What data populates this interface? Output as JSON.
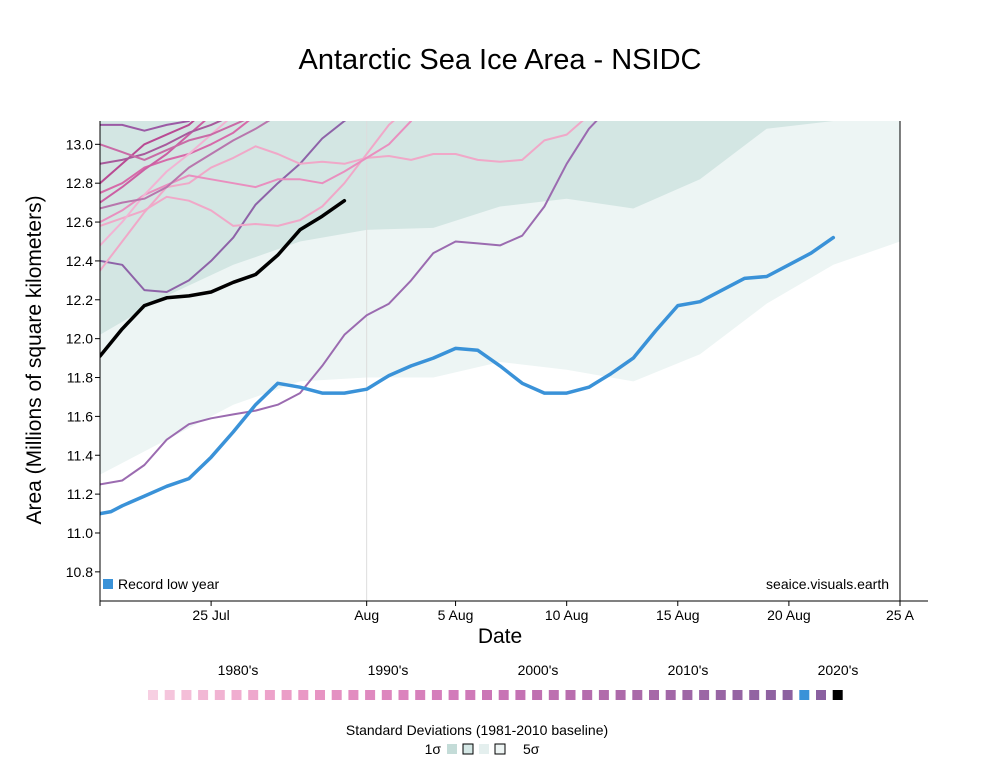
{
  "chart_data": {
    "type": "line",
    "title": "Antarctic Sea Ice Area - NSIDC",
    "xlabel": "Date",
    "ylabel": "Area (Millions of square kilometers)",
    "xlim": [
      "2000-07-20",
      "2000-08-25"
    ],
    "ylim": [
      10.65,
      13.12
    ],
    "grid": false,
    "x_ticks": [
      {
        "date": "2000-07-20",
        "label": ""
      },
      {
        "date": "2000-07-25",
        "label": "25 Jul"
      },
      {
        "date": "2000-08-01",
        "label": "Aug"
      },
      {
        "date": "2000-08-05",
        "label": "5 Aug"
      },
      {
        "date": "2000-08-10",
        "label": "10 Aug"
      },
      {
        "date": "2000-08-15",
        "label": "15 Aug"
      },
      {
        "date": "2000-08-20",
        "label": "20 Aug"
      },
      {
        "date": "2000-08-25",
        "label": "25 A"
      }
    ],
    "y_ticks": [
      "10.8",
      "11.0",
      "11.2",
      "11.4",
      "11.6",
      "11.8",
      "12.0",
      "12.2",
      "12.4",
      "12.6",
      "12.8",
      "13.0"
    ],
    "vertical_line_date": "2000-08-01",
    "std_bands": {
      "dates": [
        "2000-07-20",
        "2000-07-23",
        "2000-07-26",
        "2000-07-29",
        "2000-08-01",
        "2000-08-04",
        "2000-08-07",
        "2000-08-10",
        "2000-08-13",
        "2000-08-16",
        "2000-08-19",
        "2000-08-22",
        "2000-08-25"
      ],
      "five_sigma_lower": [
        11.3,
        11.48,
        11.66,
        11.78,
        11.8,
        11.8,
        11.88,
        11.84,
        11.78,
        11.92,
        12.18,
        12.38,
        12.5
      ],
      "five_sigma_upper": [
        13.12,
        13.12,
        13.12,
        13.12,
        13.12,
        13.12,
        13.12,
        13.12,
        13.12,
        13.12,
        13.12,
        13.12,
        13.12
      ],
      "one_sigma_lower": [
        12.02,
        12.22,
        12.38,
        12.5,
        12.56,
        12.57,
        12.68,
        12.72,
        12.67,
        12.82,
        13.08,
        13.12,
        13.12
      ],
      "one_sigma_upper": [
        13.12,
        13.12,
        13.12,
        13.12,
        13.12,
        13.12,
        13.12,
        13.12,
        13.12,
        13.12,
        13.12,
        13.12,
        13.12
      ]
    },
    "series": [
      {
        "color": "#9b6bb0",
        "width": 2,
        "points": [
          [
            "2000-07-20",
            11.25
          ],
          [
            "2000-07-21",
            11.27
          ],
          [
            "2000-07-22",
            11.35
          ],
          [
            "2000-07-23",
            11.48
          ],
          [
            "2000-07-24",
            11.56
          ],
          [
            "2000-07-25",
            11.59
          ],
          [
            "2000-07-26",
            11.61
          ],
          [
            "2000-07-27",
            11.63
          ],
          [
            "2000-07-28",
            11.66
          ],
          [
            "2000-07-29",
            11.72
          ],
          [
            "2000-07-30",
            11.86
          ],
          [
            "2000-07-31",
            12.02
          ],
          [
            "2000-08-01",
            12.12
          ],
          [
            "2000-08-02",
            12.18
          ],
          [
            "2000-08-03",
            12.3
          ],
          [
            "2000-08-04",
            12.44
          ],
          [
            "2000-08-05",
            12.5
          ],
          [
            "2000-08-06",
            12.49
          ],
          [
            "2000-08-07",
            12.48
          ],
          [
            "2000-08-08",
            12.53
          ],
          [
            "2000-08-09",
            12.68
          ],
          [
            "2000-08-10",
            12.9
          ],
          [
            "2000-08-11",
            13.08
          ],
          [
            "2000-08-12",
            13.2
          ]
        ]
      },
      {
        "color": "#8e63a8",
        "width": 2,
        "points": [
          [
            "2000-07-20",
            12.4
          ],
          [
            "2000-07-21",
            12.38
          ],
          [
            "2000-07-22",
            12.25
          ],
          [
            "2000-07-23",
            12.24
          ],
          [
            "2000-07-24",
            12.3
          ],
          [
            "2000-07-25",
            12.4
          ],
          [
            "2000-07-26",
            12.52
          ],
          [
            "2000-07-27",
            12.69
          ],
          [
            "2000-07-28",
            12.8
          ],
          [
            "2000-07-29",
            12.9
          ],
          [
            "2000-07-30",
            13.03
          ],
          [
            "2000-07-31",
            13.12
          ],
          [
            "2000-08-01",
            13.2
          ]
        ]
      },
      {
        "color": "#f0a8c8",
        "width": 2,
        "points": [
          [
            "2000-07-20",
            12.58
          ],
          [
            "2000-07-21",
            12.62
          ],
          [
            "2000-07-22",
            12.66
          ],
          [
            "2000-07-23",
            12.73
          ],
          [
            "2000-07-24",
            12.71
          ],
          [
            "2000-07-25",
            12.66
          ],
          [
            "2000-07-26",
            12.58
          ],
          [
            "2000-07-27",
            12.59
          ],
          [
            "2000-07-28",
            12.58
          ],
          [
            "2000-07-29",
            12.61
          ],
          [
            "2000-07-30",
            12.68
          ],
          [
            "2000-07-31",
            12.8
          ],
          [
            "2000-08-01",
            12.95
          ],
          [
            "2000-08-02",
            13.1
          ],
          [
            "2000-08-03",
            13.2
          ]
        ]
      },
      {
        "color": "#f0a8c8",
        "width": 2,
        "points": [
          [
            "2000-07-20",
            12.35
          ],
          [
            "2000-07-21",
            12.5
          ],
          [
            "2000-07-22",
            12.65
          ],
          [
            "2000-07-23",
            12.78
          ],
          [
            "2000-07-24",
            12.8
          ],
          [
            "2000-07-25",
            12.88
          ],
          [
            "2000-07-26",
            12.93
          ],
          [
            "2000-07-27",
            12.99
          ],
          [
            "2000-07-28",
            12.95
          ],
          [
            "2000-07-29",
            12.9
          ],
          [
            "2000-07-30",
            12.91
          ],
          [
            "2000-07-31",
            12.9
          ],
          [
            "2000-08-01",
            12.93
          ],
          [
            "2000-08-02",
            12.94
          ],
          [
            "2000-08-03",
            12.92
          ],
          [
            "2000-08-04",
            12.95
          ],
          [
            "2000-08-05",
            12.95
          ],
          [
            "2000-08-06",
            12.92
          ],
          [
            "2000-08-07",
            12.91
          ],
          [
            "2000-08-08",
            12.92
          ],
          [
            "2000-08-09",
            13.02
          ],
          [
            "2000-08-10",
            13.05
          ],
          [
            "2000-08-11",
            13.15
          ]
        ]
      },
      {
        "color": "#e98fbf",
        "width": 2,
        "points": [
          [
            "2000-07-20",
            12.6
          ],
          [
            "2000-07-21",
            12.66
          ],
          [
            "2000-07-22",
            12.74
          ],
          [
            "2000-07-23",
            12.79
          ],
          [
            "2000-07-24",
            12.84
          ],
          [
            "2000-07-25",
            12.82
          ],
          [
            "2000-07-26",
            12.8
          ],
          [
            "2000-07-27",
            12.78
          ],
          [
            "2000-07-28",
            12.82
          ],
          [
            "2000-07-29",
            12.82
          ],
          [
            "2000-07-30",
            12.8
          ],
          [
            "2000-07-31",
            12.86
          ],
          [
            "2000-08-01",
            12.93
          ],
          [
            "2000-08-02",
            13.0
          ],
          [
            "2000-08-03",
            13.12
          ]
        ]
      },
      {
        "color": "#d66aa9",
        "width": 2,
        "points": [
          [
            "2000-07-20",
            12.75
          ],
          [
            "2000-07-21",
            12.8
          ],
          [
            "2000-07-22",
            12.88
          ],
          [
            "2000-07-23",
            12.92
          ],
          [
            "2000-07-24",
            12.95
          ],
          [
            "2000-07-25",
            13.0
          ],
          [
            "2000-07-26",
            13.06
          ],
          [
            "2000-07-27",
            13.15
          ]
        ]
      },
      {
        "color": "#cc5fa3",
        "width": 2,
        "points": [
          [
            "2000-07-20",
            12.7
          ],
          [
            "2000-07-21",
            12.78
          ],
          [
            "2000-07-22",
            12.87
          ],
          [
            "2000-07-23",
            12.95
          ],
          [
            "2000-07-24",
            13.05
          ],
          [
            "2000-07-25",
            13.15
          ]
        ]
      },
      {
        "color": "#b94a93",
        "width": 2,
        "points": [
          [
            "2000-07-20",
            12.8
          ],
          [
            "2000-07-21",
            12.9
          ],
          [
            "2000-07-22",
            13.0
          ],
          [
            "2000-07-23",
            13.05
          ],
          [
            "2000-07-24",
            13.1
          ],
          [
            "2000-07-25",
            13.2
          ]
        ]
      },
      {
        "color": "#f2b3d3",
        "width": 2,
        "points": [
          [
            "2000-07-20",
            12.48
          ],
          [
            "2000-07-21",
            12.6
          ],
          [
            "2000-07-22",
            12.74
          ],
          [
            "2000-07-23",
            12.86
          ],
          [
            "2000-07-24",
            12.95
          ],
          [
            "2000-07-25",
            13.05
          ],
          [
            "2000-07-26",
            13.15
          ]
        ]
      },
      {
        "color": "#a85a9c",
        "width": 2,
        "points": [
          [
            "2000-07-20",
            12.9
          ],
          [
            "2000-07-21",
            12.92
          ],
          [
            "2000-07-22",
            12.95
          ],
          [
            "2000-07-23",
            13.0
          ],
          [
            "2000-07-24",
            13.06
          ],
          [
            "2000-07-25",
            13.1
          ],
          [
            "2000-07-26",
            13.15
          ]
        ]
      },
      {
        "color": "#9b5aa5",
        "width": 2,
        "points": [
          [
            "2000-07-20",
            13.1
          ],
          [
            "2000-07-21",
            13.1
          ],
          [
            "2000-07-22",
            13.07
          ],
          [
            "2000-07-23",
            13.1
          ],
          [
            "2000-07-24",
            13.12
          ]
        ]
      },
      {
        "color": "#c96ba6",
        "width": 2,
        "points": [
          [
            "2000-07-20",
            13.0
          ],
          [
            "2000-07-21",
            12.96
          ],
          [
            "2000-07-22",
            12.92
          ],
          [
            "2000-07-23",
            12.97
          ],
          [
            "2000-07-24",
            13.02
          ],
          [
            "2000-07-25",
            13.05
          ],
          [
            "2000-07-26",
            13.1
          ],
          [
            "2000-07-27",
            13.15
          ]
        ]
      },
      {
        "color": "#b876ad",
        "width": 2,
        "points": [
          [
            "2000-07-20",
            12.67
          ],
          [
            "2000-07-21",
            12.7
          ],
          [
            "2000-07-22",
            12.72
          ],
          [
            "2000-07-23",
            12.78
          ],
          [
            "2000-07-24",
            12.88
          ],
          [
            "2000-07-25",
            12.95
          ],
          [
            "2000-07-26",
            13.02
          ],
          [
            "2000-07-27",
            13.08
          ],
          [
            "2000-07-28",
            13.15
          ]
        ]
      },
      {
        "name": "Record low year",
        "color": "#3a92d8",
        "width": 3.5,
        "points": [
          [
            "2000-07-20",
            11.1
          ],
          [
            "2000-07-20.5",
            11.11
          ],
          [
            "2000-07-21",
            11.14
          ],
          [
            "2000-07-22",
            11.19
          ],
          [
            "2000-07-23",
            11.24
          ],
          [
            "2000-07-24",
            11.28
          ],
          [
            "2000-07-25",
            11.39
          ],
          [
            "2000-07-26",
            11.52
          ],
          [
            "2000-07-27",
            11.66
          ],
          [
            "2000-07-28",
            11.77
          ],
          [
            "2000-07-29",
            11.75
          ],
          [
            "2000-07-30",
            11.72
          ],
          [
            "2000-07-31",
            11.72
          ],
          [
            "2000-08-01",
            11.74
          ],
          [
            "2000-08-02",
            11.81
          ],
          [
            "2000-08-03",
            11.86
          ],
          [
            "2000-08-04",
            11.9
          ],
          [
            "2000-08-05",
            11.95
          ],
          [
            "2000-08-06",
            11.94
          ],
          [
            "2000-08-07",
            11.86
          ],
          [
            "2000-08-08",
            11.77
          ],
          [
            "2000-08-09",
            11.72
          ],
          [
            "2000-08-10",
            11.72
          ],
          [
            "2000-08-11",
            11.75
          ],
          [
            "2000-08-12",
            11.82
          ],
          [
            "2000-08-13",
            11.9
          ],
          [
            "2000-08-14",
            12.04
          ],
          [
            "2000-08-15",
            12.17
          ],
          [
            "2000-08-16",
            12.19
          ],
          [
            "2000-08-17",
            12.25
          ],
          [
            "2000-08-18",
            12.31
          ],
          [
            "2000-08-19",
            12.32
          ],
          [
            "2000-08-20",
            12.38
          ],
          [
            "2000-08-21",
            12.44
          ],
          [
            "2000-08-22",
            12.52
          ]
        ]
      },
      {
        "color": "#000000",
        "width": 3.5,
        "points": [
          [
            "2000-07-20",
            11.91
          ],
          [
            "2000-07-21",
            12.05
          ],
          [
            "2000-07-22",
            12.17
          ],
          [
            "2000-07-23",
            12.21
          ],
          [
            "2000-07-24",
            12.22
          ],
          [
            "2000-07-25",
            12.24
          ],
          [
            "2000-07-26",
            12.29
          ],
          [
            "2000-07-27",
            12.33
          ],
          [
            "2000-07-28",
            12.43
          ],
          [
            "2000-07-29",
            12.56
          ],
          [
            "2000-07-30",
            12.63
          ],
          [
            "2000-07-31",
            12.71
          ]
        ]
      }
    ]
  },
  "legend": {
    "record_low_label": "Record low year",
    "record_low_color": "#3a92d8",
    "credit": "seaice.visuals.earth",
    "decades": [
      "1980's",
      "1990's",
      "2000's",
      "2010's",
      "2020's"
    ],
    "year_colors": [
      "#f7cfe2",
      "#f5c5dc",
      "#f4bed8",
      "#f2b8d5",
      "#f1b3d2",
      "#f0add0",
      "#eea8cd",
      "#eda2ca",
      "#eb9dc7",
      "#e998c5",
      "#e794c3",
      "#e490c2",
      "#e28cc0",
      "#df89bf",
      "#dd86be",
      "#db83bd",
      "#d780bb",
      "#d57ebb",
      "#d27bba",
      "#cf79b8",
      "#cb76b6",
      "#c874b5",
      "#c472b3",
      "#c070b1",
      "#bd6fb0",
      "#b96dae",
      "#b56cad",
      "#b16bab",
      "#ad6aaa",
      "#aa69a9",
      "#a668a8",
      "#a267a7",
      "#9e66a6",
      "#9b66a5",
      "#9865a4",
      "#9564a3",
      "#9263a2",
      "#8f62a1",
      "#8c61a0",
      "#3a92d8",
      "#8a60a0",
      "#000000"
    ],
    "std_title": "Standard Deviations (1981-2010 baseline)",
    "std_low_label": "1σ",
    "std_high_label": "5σ",
    "std_colors": [
      "#c4dcd8",
      "#d5e8e6",
      "#e4efee",
      "#eef5f4"
    ]
  }
}
